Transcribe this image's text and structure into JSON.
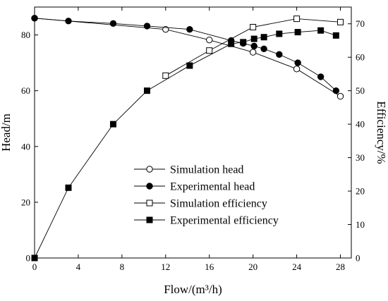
{
  "chart_data": {
    "type": "line",
    "xlabel": "Flow/(m³/h)",
    "ylabel_left": "Head/m",
    "ylabel_right": "Efficiency/%",
    "xlim": [
      0,
      29
    ],
    "ylim_left": [
      0,
      90
    ],
    "ylim_right": [
      0,
      75
    ],
    "xticks": [
      0,
      4,
      8,
      12,
      16,
      20,
      24,
      28
    ],
    "yticks_left": [
      0,
      20,
      40,
      60,
      80
    ],
    "yticks_right": [
      0,
      10,
      20,
      30,
      40,
      50,
      60,
      70
    ],
    "grid": false,
    "legend_position": "center",
    "series": [
      {
        "name": "Simulation head",
        "axis": "left",
        "marker": "open-circle",
        "x": [
          0,
          12,
          16,
          20,
          24,
          28
        ],
        "y": [
          86,
          82,
          78.2,
          73.8,
          67.8,
          58
        ]
      },
      {
        "name": "Experimental head",
        "axis": "left",
        "marker": "filled-circle",
        "x": [
          0,
          3.1,
          7.2,
          10.3,
          14.2,
          18,
          19.1,
          20.1,
          21,
          22.4,
          24.1,
          26.2,
          27.6
        ],
        "y": [
          86,
          85,
          84.1,
          83.2,
          82,
          78,
          77,
          76,
          75,
          73,
          70,
          65,
          60
        ]
      },
      {
        "name": "Simulation efficiency",
        "axis": "right",
        "marker": "open-square",
        "x": [
          12,
          16,
          20,
          24,
          28
        ],
        "y": [
          54.5,
          62,
          69,
          71.5,
          70.5
        ]
      },
      {
        "name": "Experimental efficiency",
        "axis": "right",
        "marker": "filled-square",
        "x": [
          0,
          3.1,
          7.2,
          10.3,
          14.2,
          18,
          19.1,
          20.1,
          21,
          22.4,
          24.1,
          26.2,
          27.6
        ],
        "y": [
          0,
          21,
          40,
          50,
          57.5,
          64,
          64.5,
          65.5,
          66,
          67,
          67.5,
          68,
          66.5
        ]
      }
    ]
  }
}
